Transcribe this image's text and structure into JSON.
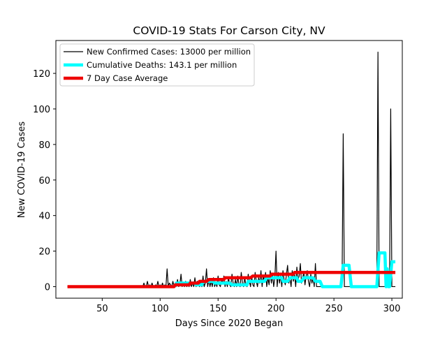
{
  "chart_data": {
    "type": "line",
    "title": "COVID-19 Stats For Carson City, NV",
    "xlabel": "Days Since 2020 Began",
    "ylabel": "New COVID-19 Cases",
    "xlim": [
      10,
      309
    ],
    "ylim": [
      -6.5,
      138.5
    ],
    "xticks": [
      50,
      100,
      150,
      200,
      250,
      300
    ],
    "yticks": [
      0,
      20,
      40,
      60,
      80,
      100,
      120
    ],
    "grid": false,
    "legend_position": "top-left",
    "series": [
      {
        "name": "New Confirmed Cases: 13000 per million",
        "color": "#000000",
        "style": "thin line",
        "points": [
          [
            20,
            0
          ],
          [
            85,
            0
          ],
          [
            86,
            2
          ],
          [
            87,
            0
          ],
          [
            88,
            0
          ],
          [
            89,
            3
          ],
          [
            90,
            0
          ],
          [
            91,
            1
          ],
          [
            92,
            0
          ],
          [
            93,
            2
          ],
          [
            94,
            0
          ],
          [
            95,
            0
          ],
          [
            96,
            1
          ],
          [
            97,
            0
          ],
          [
            98,
            3
          ],
          [
            99,
            0
          ],
          [
            100,
            1
          ],
          [
            101,
            0
          ],
          [
            102,
            2
          ],
          [
            103,
            0
          ],
          [
            104,
            1
          ],
          [
            105,
            0
          ],
          [
            106,
            10
          ],
          [
            107,
            0
          ],
          [
            108,
            2
          ],
          [
            109,
            1
          ],
          [
            110,
            0
          ],
          [
            111,
            3
          ],
          [
            112,
            0
          ],
          [
            113,
            1
          ],
          [
            114,
            0
          ],
          [
            115,
            4
          ],
          [
            116,
            0
          ],
          [
            117,
            1
          ],
          [
            118,
            7
          ],
          [
            119,
            0
          ],
          [
            120,
            2
          ],
          [
            121,
            0
          ],
          [
            122,
            3
          ],
          [
            123,
            0
          ],
          [
            124,
            1
          ],
          [
            125,
            0
          ],
          [
            126,
            4
          ],
          [
            127,
            0
          ],
          [
            128,
            2
          ],
          [
            129,
            0
          ],
          [
            130,
            5
          ],
          [
            131,
            0
          ],
          [
            132,
            3
          ],
          [
            133,
            1
          ],
          [
            134,
            0
          ],
          [
            135,
            3
          ],
          [
            136,
            0
          ],
          [
            137,
            6
          ],
          [
            138,
            0
          ],
          [
            139,
            2
          ],
          [
            140,
            10
          ],
          [
            141,
            0
          ],
          [
            142,
            4
          ],
          [
            143,
            0
          ],
          [
            144,
            3
          ],
          [
            145,
            0
          ],
          [
            146,
            5
          ],
          [
            147,
            0
          ],
          [
            148,
            2
          ],
          [
            149,
            0
          ],
          [
            150,
            6
          ],
          [
            151,
            1
          ],
          [
            152,
            0
          ],
          [
            153,
            4
          ],
          [
            154,
            2
          ],
          [
            155,
            6
          ],
          [
            156,
            0
          ],
          [
            157,
            3
          ],
          [
            158,
            0
          ],
          [
            159,
            5
          ],
          [
            160,
            1
          ],
          [
            161,
            0
          ],
          [
            162,
            7
          ],
          [
            163,
            2
          ],
          [
            164,
            0
          ],
          [
            165,
            4
          ],
          [
            166,
            0
          ],
          [
            167,
            6
          ],
          [
            168,
            1
          ],
          [
            169,
            0
          ],
          [
            170,
            8
          ],
          [
            171,
            2
          ],
          [
            172,
            0
          ],
          [
            173,
            5
          ],
          [
            174,
            1
          ],
          [
            175,
            0
          ],
          [
            176,
            7
          ],
          [
            177,
            3
          ],
          [
            178,
            0
          ],
          [
            179,
            6
          ],
          [
            180,
            1
          ],
          [
            181,
            0
          ],
          [
            182,
            8
          ],
          [
            183,
            3
          ],
          [
            184,
            0
          ],
          [
            185,
            5
          ],
          [
            186,
            2
          ],
          [
            187,
            9
          ],
          [
            188,
            0
          ],
          [
            189,
            6
          ],
          [
            190,
            3
          ],
          [
            191,
            8
          ],
          [
            192,
            0
          ],
          [
            193,
            5
          ],
          [
            194,
            1
          ],
          [
            195,
            9
          ],
          [
            196,
            2
          ],
          [
            197,
            7
          ],
          [
            198,
            0
          ],
          [
            199,
            5
          ],
          [
            200,
            20
          ],
          [
            201,
            0
          ],
          [
            202,
            8
          ],
          [
            203,
            2
          ],
          [
            204,
            6
          ],
          [
            205,
            0
          ],
          [
            206,
            9
          ],
          [
            207,
            4
          ],
          [
            208,
            1
          ],
          [
            209,
            7
          ],
          [
            210,
            12
          ],
          [
            211,
            2
          ],
          [
            212,
            5
          ],
          [
            213,
            0
          ],
          [
            214,
            9
          ],
          [
            215,
            3
          ],
          [
            216,
            7
          ],
          [
            217,
            0
          ],
          [
            218,
            11
          ],
          [
            219,
            4
          ],
          [
            220,
            6
          ],
          [
            221,
            13
          ],
          [
            222,
            2
          ],
          [
            223,
            5
          ],
          [
            224,
            8
          ],
          [
            225,
            1
          ],
          [
            226,
            6
          ],
          [
            227,
            9
          ],
          [
            228,
            3
          ],
          [
            229,
            0
          ],
          [
            230,
            7
          ],
          [
            231,
            2
          ],
          [
            232,
            5
          ],
          [
            233,
            0
          ],
          [
            234,
            13
          ],
          [
            235,
            0
          ],
          [
            257,
            0
          ],
          [
            258,
            86
          ],
          [
            259,
            0
          ],
          [
            287,
            0
          ],
          [
            288,
            132
          ],
          [
            289,
            0
          ],
          [
            298,
            0
          ],
          [
            299,
            100
          ],
          [
            300,
            0
          ],
          [
            303,
            0
          ]
        ]
      },
      {
        "name": "Cumulative Deaths: 143.1 per million",
        "color": "#00ffff",
        "style": "thick line",
        "points": [
          [
            113,
            0
          ],
          [
            114,
            2
          ],
          [
            130,
            2
          ],
          [
            131,
            1
          ],
          [
            136,
            1
          ],
          [
            137,
            3
          ],
          [
            146,
            3
          ],
          [
            147,
            2
          ],
          [
            160,
            2
          ],
          [
            162,
            1
          ],
          [
            175,
            1
          ],
          [
            176,
            3
          ],
          [
            190,
            3
          ],
          [
            192,
            5
          ],
          [
            205,
            5
          ],
          [
            206,
            3
          ],
          [
            210,
            3
          ],
          [
            212,
            5
          ],
          [
            218,
            5
          ],
          [
            219,
            3
          ],
          [
            222,
            3
          ],
          [
            224,
            5
          ],
          [
            232,
            5
          ],
          [
            234,
            3
          ],
          [
            238,
            3
          ],
          [
            240,
            0
          ],
          [
            256,
            0
          ],
          [
            258,
            12
          ],
          [
            263,
            12
          ],
          [
            265,
            0
          ],
          [
            287,
            0
          ],
          [
            289,
            19
          ],
          [
            294,
            19
          ],
          [
            295,
            0
          ],
          [
            296,
            10
          ],
          [
            297,
            0
          ],
          [
            298,
            0
          ],
          [
            300,
            14
          ],
          [
            303,
            14
          ]
        ]
      },
      {
        "name": "7 Day Case Average",
        "color": "#ee0000",
        "style": "thick line",
        "points": [
          [
            20,
            0
          ],
          [
            112,
            0
          ],
          [
            113,
            1
          ],
          [
            125,
            1
          ],
          [
            126,
            2
          ],
          [
            133,
            2
          ],
          [
            134,
            3
          ],
          [
            140,
            3
          ],
          [
            142,
            4
          ],
          [
            155,
            4
          ],
          [
            156,
            5
          ],
          [
            178,
            5
          ],
          [
            180,
            6
          ],
          [
            195,
            6
          ],
          [
            196,
            7
          ],
          [
            215,
            7
          ],
          [
            216,
            8
          ],
          [
            303,
            8
          ]
        ]
      }
    ]
  }
}
